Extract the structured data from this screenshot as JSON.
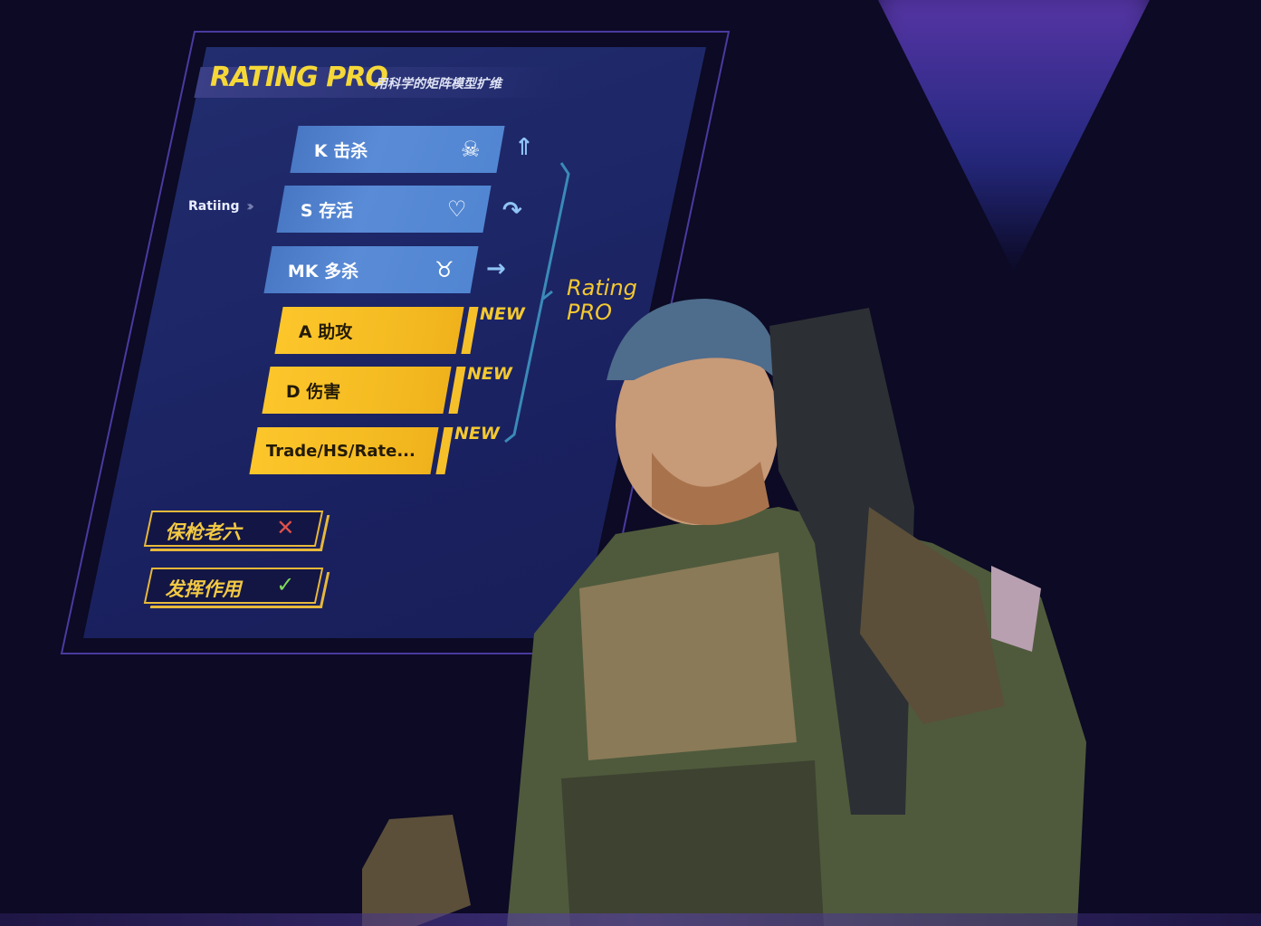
{
  "header": {
    "title": "RATING PRO",
    "subtitle": "用科学的矩阵模型扩维"
  },
  "rating_label": "Ratiing",
  "metrics": [
    {
      "label": "K 击杀",
      "icon": "skull-icon",
      "trend_icon": "double-up-arrow-icon",
      "style": "blue"
    },
    {
      "label": "S 存活",
      "icon": "heart-icon",
      "trend_icon": "down-curve-arrow-icon",
      "style": "blue"
    },
    {
      "label": "MK 多杀",
      "icon": "bull-skull-icon",
      "trend_icon": "right-arrow-icon",
      "style": "blue"
    },
    {
      "label": "A 助攻",
      "badge": "NEW",
      "style": "yellow"
    },
    {
      "label": "D 伤害",
      "badge": "NEW",
      "style": "yellow"
    },
    {
      "label": "Trade/HS/Rate...",
      "badge": "NEW",
      "style": "yellow"
    }
  ],
  "result": {
    "line1": "Rating",
    "line2": "PRO"
  },
  "tags": [
    {
      "label": "保枪老六",
      "mark": "✕",
      "mark_icon": "cross-icon",
      "color": "#e0524a"
    },
    {
      "label": "发挥作用",
      "mark": "✓",
      "mark_icon": "check-icon",
      "color": "#7ed957"
    }
  ],
  "colors": {
    "accent_yellow": "#f5c930",
    "bar_blue": "#5186d2",
    "background": "#0c0a24",
    "panel": "#1a2160"
  }
}
